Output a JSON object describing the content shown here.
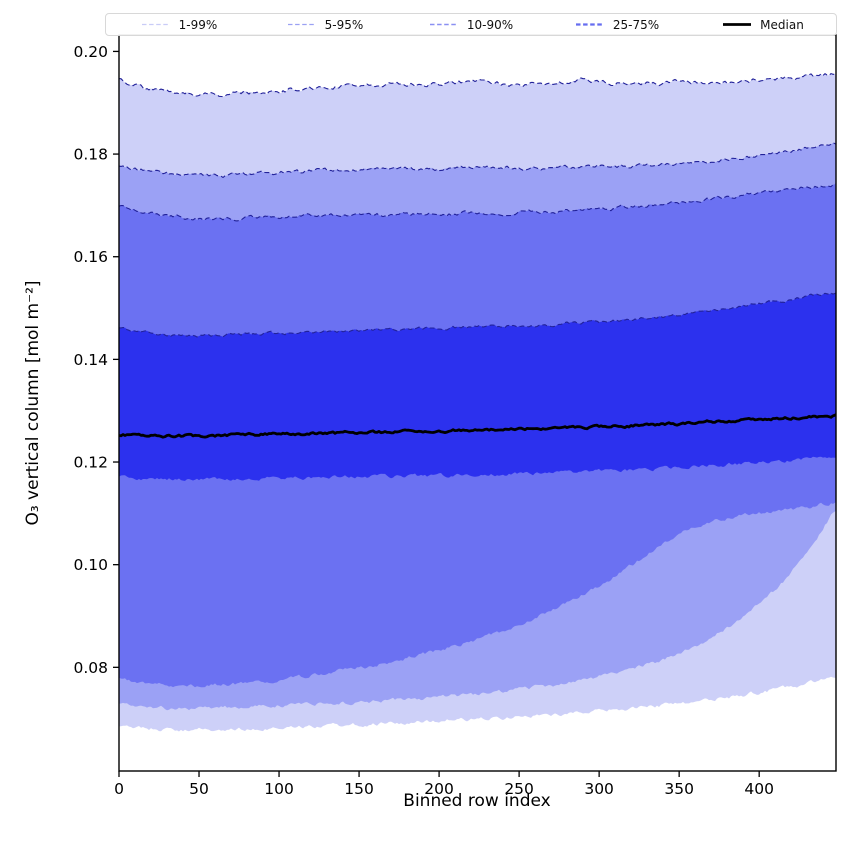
{
  "chart_data": {
    "type": "area",
    "variant": "percentile_band_fan",
    "title": "",
    "xlabel": "Binned row index",
    "ylabel": "O₃ vertical column [mol m⁻²]",
    "xlim": [
      0,
      448
    ],
    "ylim": [
      0.0598,
      0.2032
    ],
    "xticks": [
      0,
      50,
      100,
      150,
      200,
      250,
      300,
      350,
      400
    ],
    "yticks": [
      "0.20",
      "0.18",
      "0.16",
      "0.14",
      "0.12",
      "0.10",
      "0.08"
    ],
    "grid": false,
    "axis_color": "#000000",
    "band_edge_color": "#22229a",
    "legend": {
      "position": "top",
      "entries": [
        {
          "label": "1-99%",
          "line_color": "#c9ccf7",
          "line_style": "dashed",
          "line_width": 1.2
        },
        {
          "label": "5-95%",
          "line_color": "#9ba1f3",
          "line_style": "dashed",
          "line_width": 1.2
        },
        {
          "label": "10-90%",
          "line_color": "#8a90f2",
          "line_style": "dashed",
          "line_width": 1.5
        },
        {
          "label": "25-75%",
          "line_color": "#666df0",
          "line_style": "dashed",
          "line_width": 2.2
        },
        {
          "label": "Median",
          "line_color": "#000000",
          "line_style": "solid",
          "line_width": 2.8
        }
      ]
    },
    "x": [
      0,
      16,
      32,
      48,
      64,
      80,
      96,
      112,
      128,
      144,
      160,
      176,
      192,
      208,
      224,
      240,
      256,
      272,
      288,
      304,
      320,
      336,
      352,
      368,
      384,
      400,
      416,
      432,
      448
    ],
    "series": {
      "p1": [
        0.0684,
        0.0681,
        0.0679,
        0.0678,
        0.0679,
        0.068,
        0.0682,
        0.0684,
        0.0686,
        0.0688,
        0.069,
        0.0692,
        0.0694,
        0.0697,
        0.0699,
        0.0702,
        0.0705,
        0.0708,
        0.0712,
        0.0716,
        0.072,
        0.0725,
        0.073,
        0.0736,
        0.0743,
        0.0751,
        0.076,
        0.077,
        0.0782
      ],
      "p5": [
        0.0727,
        0.0722,
        0.072,
        0.072,
        0.0721,
        0.0723,
        0.0725,
        0.0727,
        0.0729,
        0.0731,
        0.0734,
        0.0737,
        0.074,
        0.0744,
        0.0748,
        0.0753,
        0.0759,
        0.0766,
        0.0774,
        0.0784,
        0.0796,
        0.0811,
        0.083,
        0.0854,
        0.0884,
        0.0922,
        0.0968,
        0.103,
        0.1112
      ],
      "p10": [
        0.0778,
        0.0769,
        0.0765,
        0.0764,
        0.0766,
        0.077,
        0.0775,
        0.0781,
        0.0788,
        0.0796,
        0.0805,
        0.0815,
        0.0827,
        0.084,
        0.0855,
        0.0872,
        0.0891,
        0.0913,
        0.0938,
        0.0966,
        0.0998,
        0.1032,
        0.1062,
        0.1082,
        0.1094,
        0.1101,
        0.1106,
        0.1112,
        0.1124
      ],
      "p25": [
        0.1172,
        0.1169,
        0.1167,
        0.1166,
        0.1166,
        0.1167,
        0.1168,
        0.1169,
        0.117,
        0.1171,
        0.1172,
        0.1172,
        0.1173,
        0.1174,
        0.1175,
        0.1176,
        0.1177,
        0.1179,
        0.1181,
        0.1183,
        0.1185,
        0.1187,
        0.119,
        0.1193,
        0.1196,
        0.1199,
        0.1203,
        0.1207,
        0.1211
      ],
      "median": [
        0.1254,
        0.1252,
        0.1251,
        0.1251,
        0.1252,
        0.1253,
        0.1254,
        0.1255,
        0.1256,
        0.1257,
        0.1258,
        0.1259,
        0.126,
        0.1261,
        0.1263,
        0.1264,
        0.1265,
        0.1266,
        0.1268,
        0.1269,
        0.1271,
        0.1273,
        0.1275,
        0.1278,
        0.128,
        0.1283,
        0.1285,
        0.1288,
        0.1291
      ],
      "p75": [
        0.146,
        0.1452,
        0.1448,
        0.1446,
        0.1447,
        0.1449,
        0.1451,
        0.1452,
        0.1454,
        0.1456,
        0.1458,
        0.1459,
        0.146,
        0.1462,
        0.1463,
        0.1465,
        0.1466,
        0.1468,
        0.1471,
        0.1474,
        0.1478,
        0.1483,
        0.1488,
        0.1494,
        0.1501,
        0.1508,
        0.1515,
        0.1523,
        0.1531
      ],
      "p90": [
        0.17,
        0.1686,
        0.1678,
        0.1674,
        0.1673,
        0.1675,
        0.1677,
        0.1679,
        0.168,
        0.1681,
        0.1682,
        0.1682,
        0.1683,
        0.1684,
        0.1686,
        0.1686,
        0.1687,
        0.1689,
        0.1691,
        0.1694,
        0.1697,
        0.1701,
        0.1706,
        0.1712,
        0.1718,
        0.1724,
        0.173,
        0.1736,
        0.1742
      ],
      "p95": [
        0.178,
        0.1768,
        0.1762,
        0.1758,
        0.1757,
        0.176,
        0.1763,
        0.1766,
        0.1768,
        0.177,
        0.1772,
        0.1771,
        0.177,
        0.1772,
        0.1774,
        0.1773,
        0.1772,
        0.1774,
        0.1776,
        0.1776,
        0.1777,
        0.1779,
        0.1782,
        0.1786,
        0.1791,
        0.1797,
        0.1804,
        0.1812,
        0.1821
      ],
      "p99": [
        0.1945,
        0.1928,
        0.1921,
        0.1917,
        0.1916,
        0.1919,
        0.1923,
        0.1927,
        0.193,
        0.1933,
        0.1935,
        0.1936,
        0.1934,
        0.1938,
        0.1942,
        0.1938,
        0.1935,
        0.194,
        0.1944,
        0.194,
        0.1937,
        0.1939,
        0.1941,
        0.1938,
        0.1941,
        0.1944,
        0.1947,
        0.1951,
        0.1956
      ]
    },
    "bands": [
      {
        "label": "1-99%",
        "lower": "p1",
        "upper": "p99",
        "fill": "#cdd0f8"
      },
      {
        "label": "5-95%",
        "lower": "p5",
        "upper": "p95",
        "fill": "#9ba1f5"
      },
      {
        "label": "10-90%",
        "lower": "p10",
        "upper": "p90",
        "fill": "#6b71f2"
      },
      {
        "label": "25-75%",
        "lower": "p25",
        "upper": "p75",
        "fill": "#2c31ee"
      }
    ],
    "median_line": {
      "label": "Median",
      "series": "median",
      "color": "#000000",
      "width": 2.8
    }
  }
}
